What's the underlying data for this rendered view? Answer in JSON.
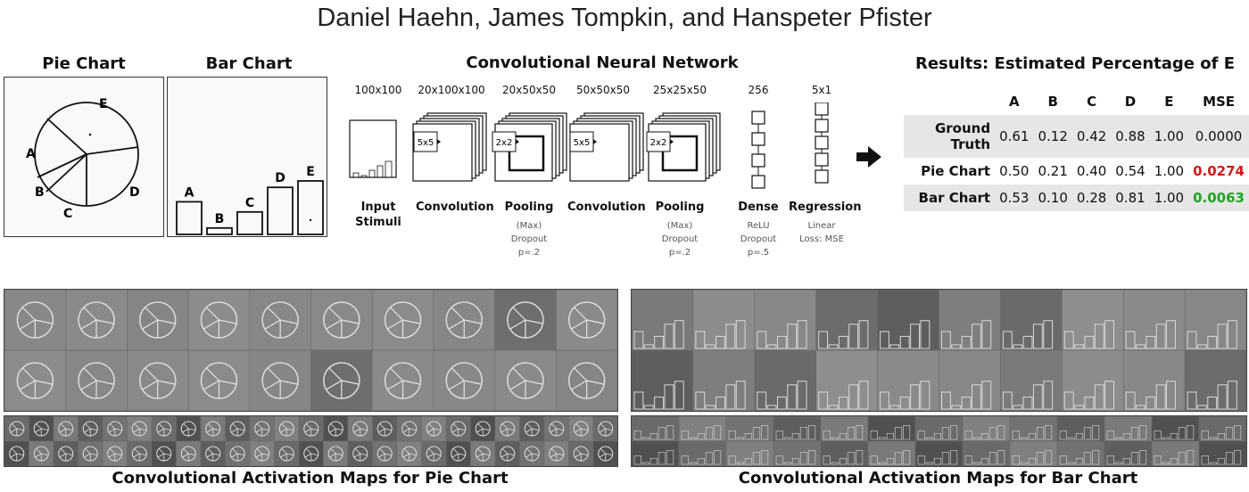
{
  "authors": "Daniel Haehn, James Tompkin, and Hanspeter Pfister",
  "pie_chart": {
    "title": "Pie Chart",
    "labels": [
      "A",
      "B",
      "C",
      "D",
      "E"
    ]
  },
  "bar_chart": {
    "title": "Bar Chart",
    "labels": [
      "A",
      "B",
      "C",
      "D",
      "E"
    ],
    "values": [
      0.61,
      0.12,
      0.42,
      0.88,
      1.0
    ]
  },
  "cnn": {
    "title": "Convolutional Neural Network",
    "kernel_conv": "5x5",
    "kernel_pool": "2x2",
    "layers": [
      {
        "dim": "100x100",
        "label": "Input\nStimuli",
        "sub": ""
      },
      {
        "dim": "20x100x100",
        "label": "Convolution",
        "sub": ""
      },
      {
        "dim": "20x50x50",
        "label": "Pooling",
        "sub": "(Max)\nDropout\np=.2"
      },
      {
        "dim": "50x50x50",
        "label": "Convolution",
        "sub": ""
      },
      {
        "dim": "25x25x50",
        "label": "Pooling",
        "sub": "(Max)\nDropout\np=.2"
      },
      {
        "dim": "256",
        "label": "Dense",
        "sub": "ReLU\nDropout\np=.5"
      },
      {
        "dim": "5x1",
        "label": "Regression",
        "sub": "Linear\nLoss: MSE"
      }
    ]
  },
  "results": {
    "title": "Results: Estimated Percentage of E",
    "columns": [
      "",
      "A",
      "B",
      "C",
      "D",
      "E",
      "MSE"
    ],
    "rows": [
      {
        "label": "Ground Truth",
        "values": [
          "0.61",
          "0.12",
          "0.42",
          "0.88",
          "1.00"
        ],
        "mse": "0.0000",
        "mse_color": "#111111"
      },
      {
        "label": "Pie Chart",
        "values": [
          "0.50",
          "0.21",
          "0.40",
          "0.54",
          "1.00"
        ],
        "mse": "0.0274",
        "mse_color": "#d01a1a"
      },
      {
        "label": "Bar Chart",
        "values": [
          "0.53",
          "0.10",
          "0.28",
          "0.81",
          "1.00"
        ],
        "mse": "0.0063",
        "mse_color": "#22a322"
      }
    ]
  },
  "captions": {
    "pie": "Convolutional Activation Maps for Pie Chart",
    "bar": "Convolutional Activation Maps for Bar Chart"
  }
}
